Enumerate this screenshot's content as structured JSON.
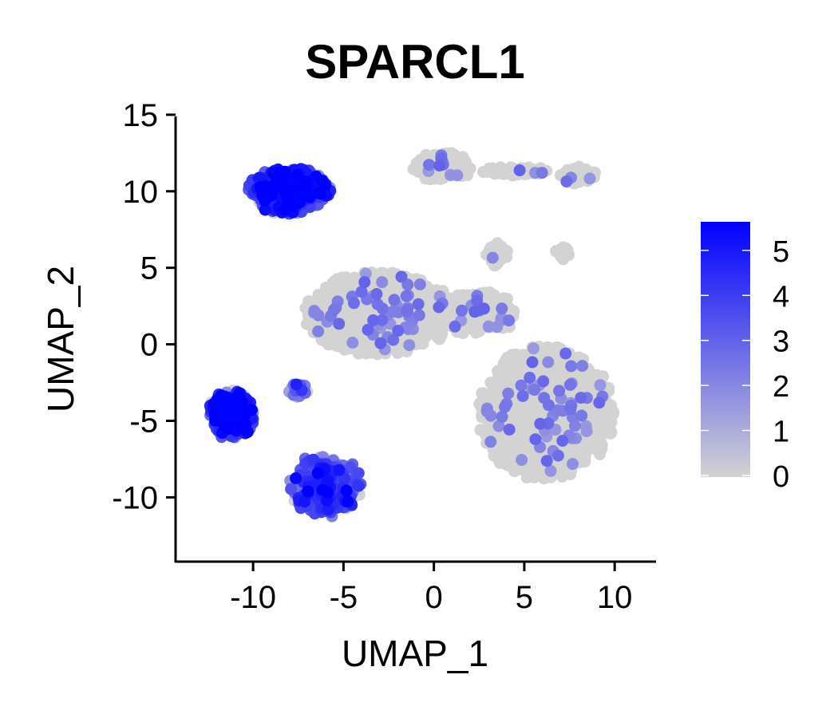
{
  "chart_data": {
    "type": "scatter",
    "title": "SPARCL1",
    "xlabel": "UMAP_1",
    "ylabel": "UMAP_2",
    "xlim": [
      -14.2,
      12.2
    ],
    "ylim": [
      -14.2,
      15.2
    ],
    "x_ticks": [
      -10,
      -5,
      0,
      5,
      10
    ],
    "y_ticks": [
      15,
      10,
      5,
      0,
      -5,
      -10
    ],
    "grid": false,
    "legend": {
      "type": "colorbar",
      "placement": "right",
      "min": 0,
      "max": 5.6,
      "ticks": [
        0,
        1,
        2,
        3,
        4,
        5
      ],
      "low_color": "#d3d3d3",
      "high_color": "#0000ff"
    },
    "clusters": [
      {
        "cx": -8.0,
        "cy": 10.0,
        "rx": 2.2,
        "ry": 1.5,
        "expr": 4.0,
        "count": 500
      },
      {
        "cx": -11.2,
        "cy": -4.6,
        "rx": 1.2,
        "ry": 1.6,
        "expr": 4.6,
        "count": 320
      },
      {
        "cx": -6.0,
        "cy": -9.2,
        "rx": 1.9,
        "ry": 2.0,
        "expr": 3.2,
        "count": 420
      },
      {
        "cx": -7.5,
        "cy": -3.0,
        "rx": 0.6,
        "ry": 0.5,
        "expr": 2.0,
        "count": 40
      },
      {
        "cx": 0.5,
        "cy": 11.6,
        "rx": 1.6,
        "ry": 0.9,
        "expr": 0.05,
        "count": 260
      },
      {
        "cx": 4.5,
        "cy": 11.3,
        "rx": 1.8,
        "ry": 0.3,
        "expr": 0.05,
        "count": 90
      },
      {
        "cx": 8.0,
        "cy": 11.0,
        "rx": 1.0,
        "ry": 0.6,
        "expr": 0.05,
        "count": 90
      },
      {
        "cx": -3.0,
        "cy": 2.0,
        "rx": 4.0,
        "ry": 2.6,
        "expr": 0.2,
        "count": 1400
      },
      {
        "cx": 2.5,
        "cy": 2.0,
        "rx": 2.0,
        "ry": 1.4,
        "expr": 0.1,
        "count": 400
      },
      {
        "cx": 3.5,
        "cy": 5.8,
        "rx": 0.6,
        "ry": 0.8,
        "expr": 0.1,
        "count": 70
      },
      {
        "cx": 6.2,
        "cy": -4.5,
        "rx": 3.6,
        "ry": 4.2,
        "expr": 0.15,
        "count": 1500
      },
      {
        "cx": 7.2,
        "cy": 6.0,
        "rx": 0.5,
        "ry": 0.5,
        "expr": 0.0,
        "count": 20
      }
    ]
  }
}
